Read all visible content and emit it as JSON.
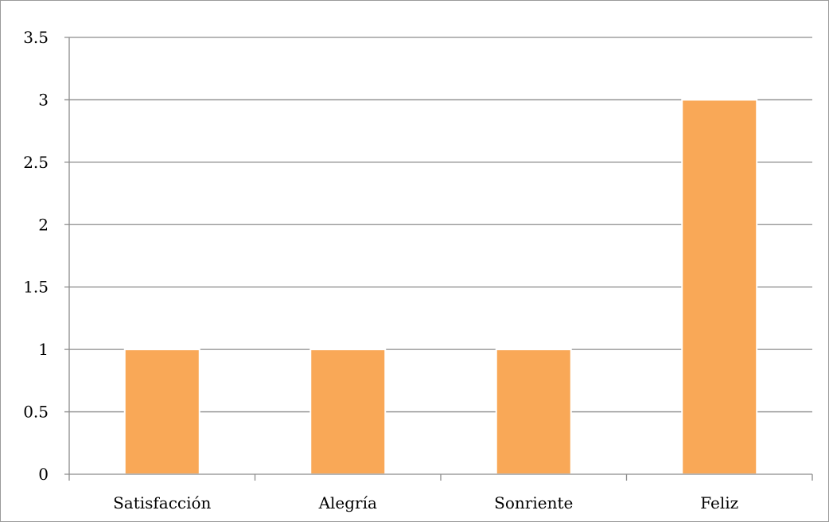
{
  "chart_data": {
    "type": "bar",
    "categories": [
      "Satisfacción",
      "Alegría",
      "Sonriente",
      "Feliz"
    ],
    "values": [
      1,
      1,
      1,
      3
    ],
    "ylim": [
      0,
      3.5
    ],
    "y_ticks": [
      "0",
      "0.5",
      "1",
      "1.5",
      "2",
      "2.5",
      "3",
      "3.5"
    ],
    "title": "",
    "xlabel": "",
    "ylabel": "",
    "grid": true,
    "legend": "none"
  },
  "colors": {
    "bar": "#F9A857",
    "bar_edge": "#ffffff",
    "grid": "#8c8c8c",
    "axis": "#8c8c8c"
  }
}
